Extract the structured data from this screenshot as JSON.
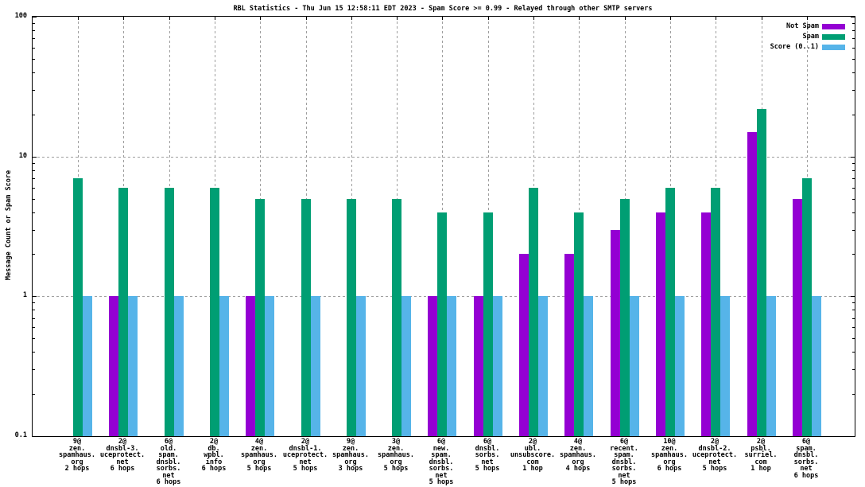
{
  "title": "RBL Statistics - Thu Jun 15 12:58:11 EDT 2023 - Spam Score >= 0.99 - Relayed through other SMTP servers",
  "legend": [
    {
      "label": "Not Spam",
      "color": "#9400d3"
    },
    {
      "label": "Spam",
      "color": "#009e73"
    },
    {
      "label": "Score (0..1)",
      "color": "#56b4e9"
    }
  ],
  "y_axis": {
    "label": "Message Count or Spam Score",
    "tick_labels": [
      "100",
      "10",
      "1",
      "0.1"
    ],
    "tick_values": [
      100,
      10,
      1,
      0.1
    ]
  },
  "chart_data": {
    "type": "bar",
    "title": "RBL Statistics - Thu Jun 15 12:58:11 EDT 2023 - Spam Score >= 0.99 - Relayed through other SMTP servers",
    "xlabel": "",
    "ylabel": "Message Count or Spam Score",
    "y_scale": "log",
    "ylim": [
      0.1,
      100
    ],
    "grid": true,
    "legend_position": "top-right-inside",
    "grid_y_values": [
      10,
      1
    ],
    "categories": [
      [
        "9@",
        "zen.",
        "spamhaus.",
        "org",
        "2 hops"
      ],
      [
        "2@",
        "dnsbl-3.",
        "uceprotect.",
        "net",
        "6 hops"
      ],
      [
        "6@",
        "old.",
        "spam.",
        "dnsbl.",
        "sorbs.",
        "net",
        "6 hops"
      ],
      [
        "2@",
        "db.",
        "wpbl.",
        "info",
        "6 hops"
      ],
      [
        "4@",
        "zen.",
        "spamhaus.",
        "org",
        "5 hops"
      ],
      [
        "2@",
        "dnsbl-1.",
        "uceprotect.",
        "net",
        "5 hops"
      ],
      [
        "9@",
        "zen.",
        "spamhaus.",
        "org",
        "3 hops"
      ],
      [
        "3@",
        "zen.",
        "spamhaus.",
        "org",
        "5 hops"
      ],
      [
        "6@",
        "new.",
        "spam.",
        "dnsbl.",
        "sorbs.",
        "net",
        "5 hops"
      ],
      [
        "6@",
        "dnsbl.",
        "sorbs.",
        "net",
        "5 hops"
      ],
      [
        "2@",
        "ubl.",
        "unsubscore.",
        "com",
        "1 hop"
      ],
      [
        "4@",
        "zen.",
        "spamhaus.",
        "org",
        "4 hops"
      ],
      [
        "6@",
        "recent.",
        "spam.",
        "dnsbl.",
        "sorbs.",
        "net",
        "5 hops"
      ],
      [
        "10@",
        "zen.",
        "spamhaus.",
        "org",
        "6 hops"
      ],
      [
        "2@",
        "dnsbl-2.",
        "uceprotect.",
        "net",
        "5 hops"
      ],
      [
        "2@",
        "psbl.",
        "surriel.",
        "com",
        "1 hop"
      ],
      [
        "6@",
        "spam.",
        "dnsbl.",
        "sorbs.",
        "net",
        "6 hops"
      ]
    ],
    "series": [
      {
        "name": "Not Spam",
        "color": "#9400d3",
        "values": [
          null,
          1,
          null,
          null,
          1,
          null,
          null,
          null,
          1,
          1,
          2,
          2,
          3,
          4,
          4,
          15,
          5
        ]
      },
      {
        "name": "Spam",
        "color": "#009e73",
        "values": [
          7,
          6,
          6,
          6,
          5,
          5,
          5,
          5,
          4,
          4,
          6,
          4,
          5,
          6,
          6,
          22,
          7
        ]
      },
      {
        "name": "Score (0..1)",
        "color": "#56b4e9",
        "values": [
          1,
          1,
          1,
          1,
          1,
          1,
          1,
          1,
          1,
          1,
          1,
          1,
          1,
          1,
          1,
          1,
          1
        ]
      }
    ]
  }
}
